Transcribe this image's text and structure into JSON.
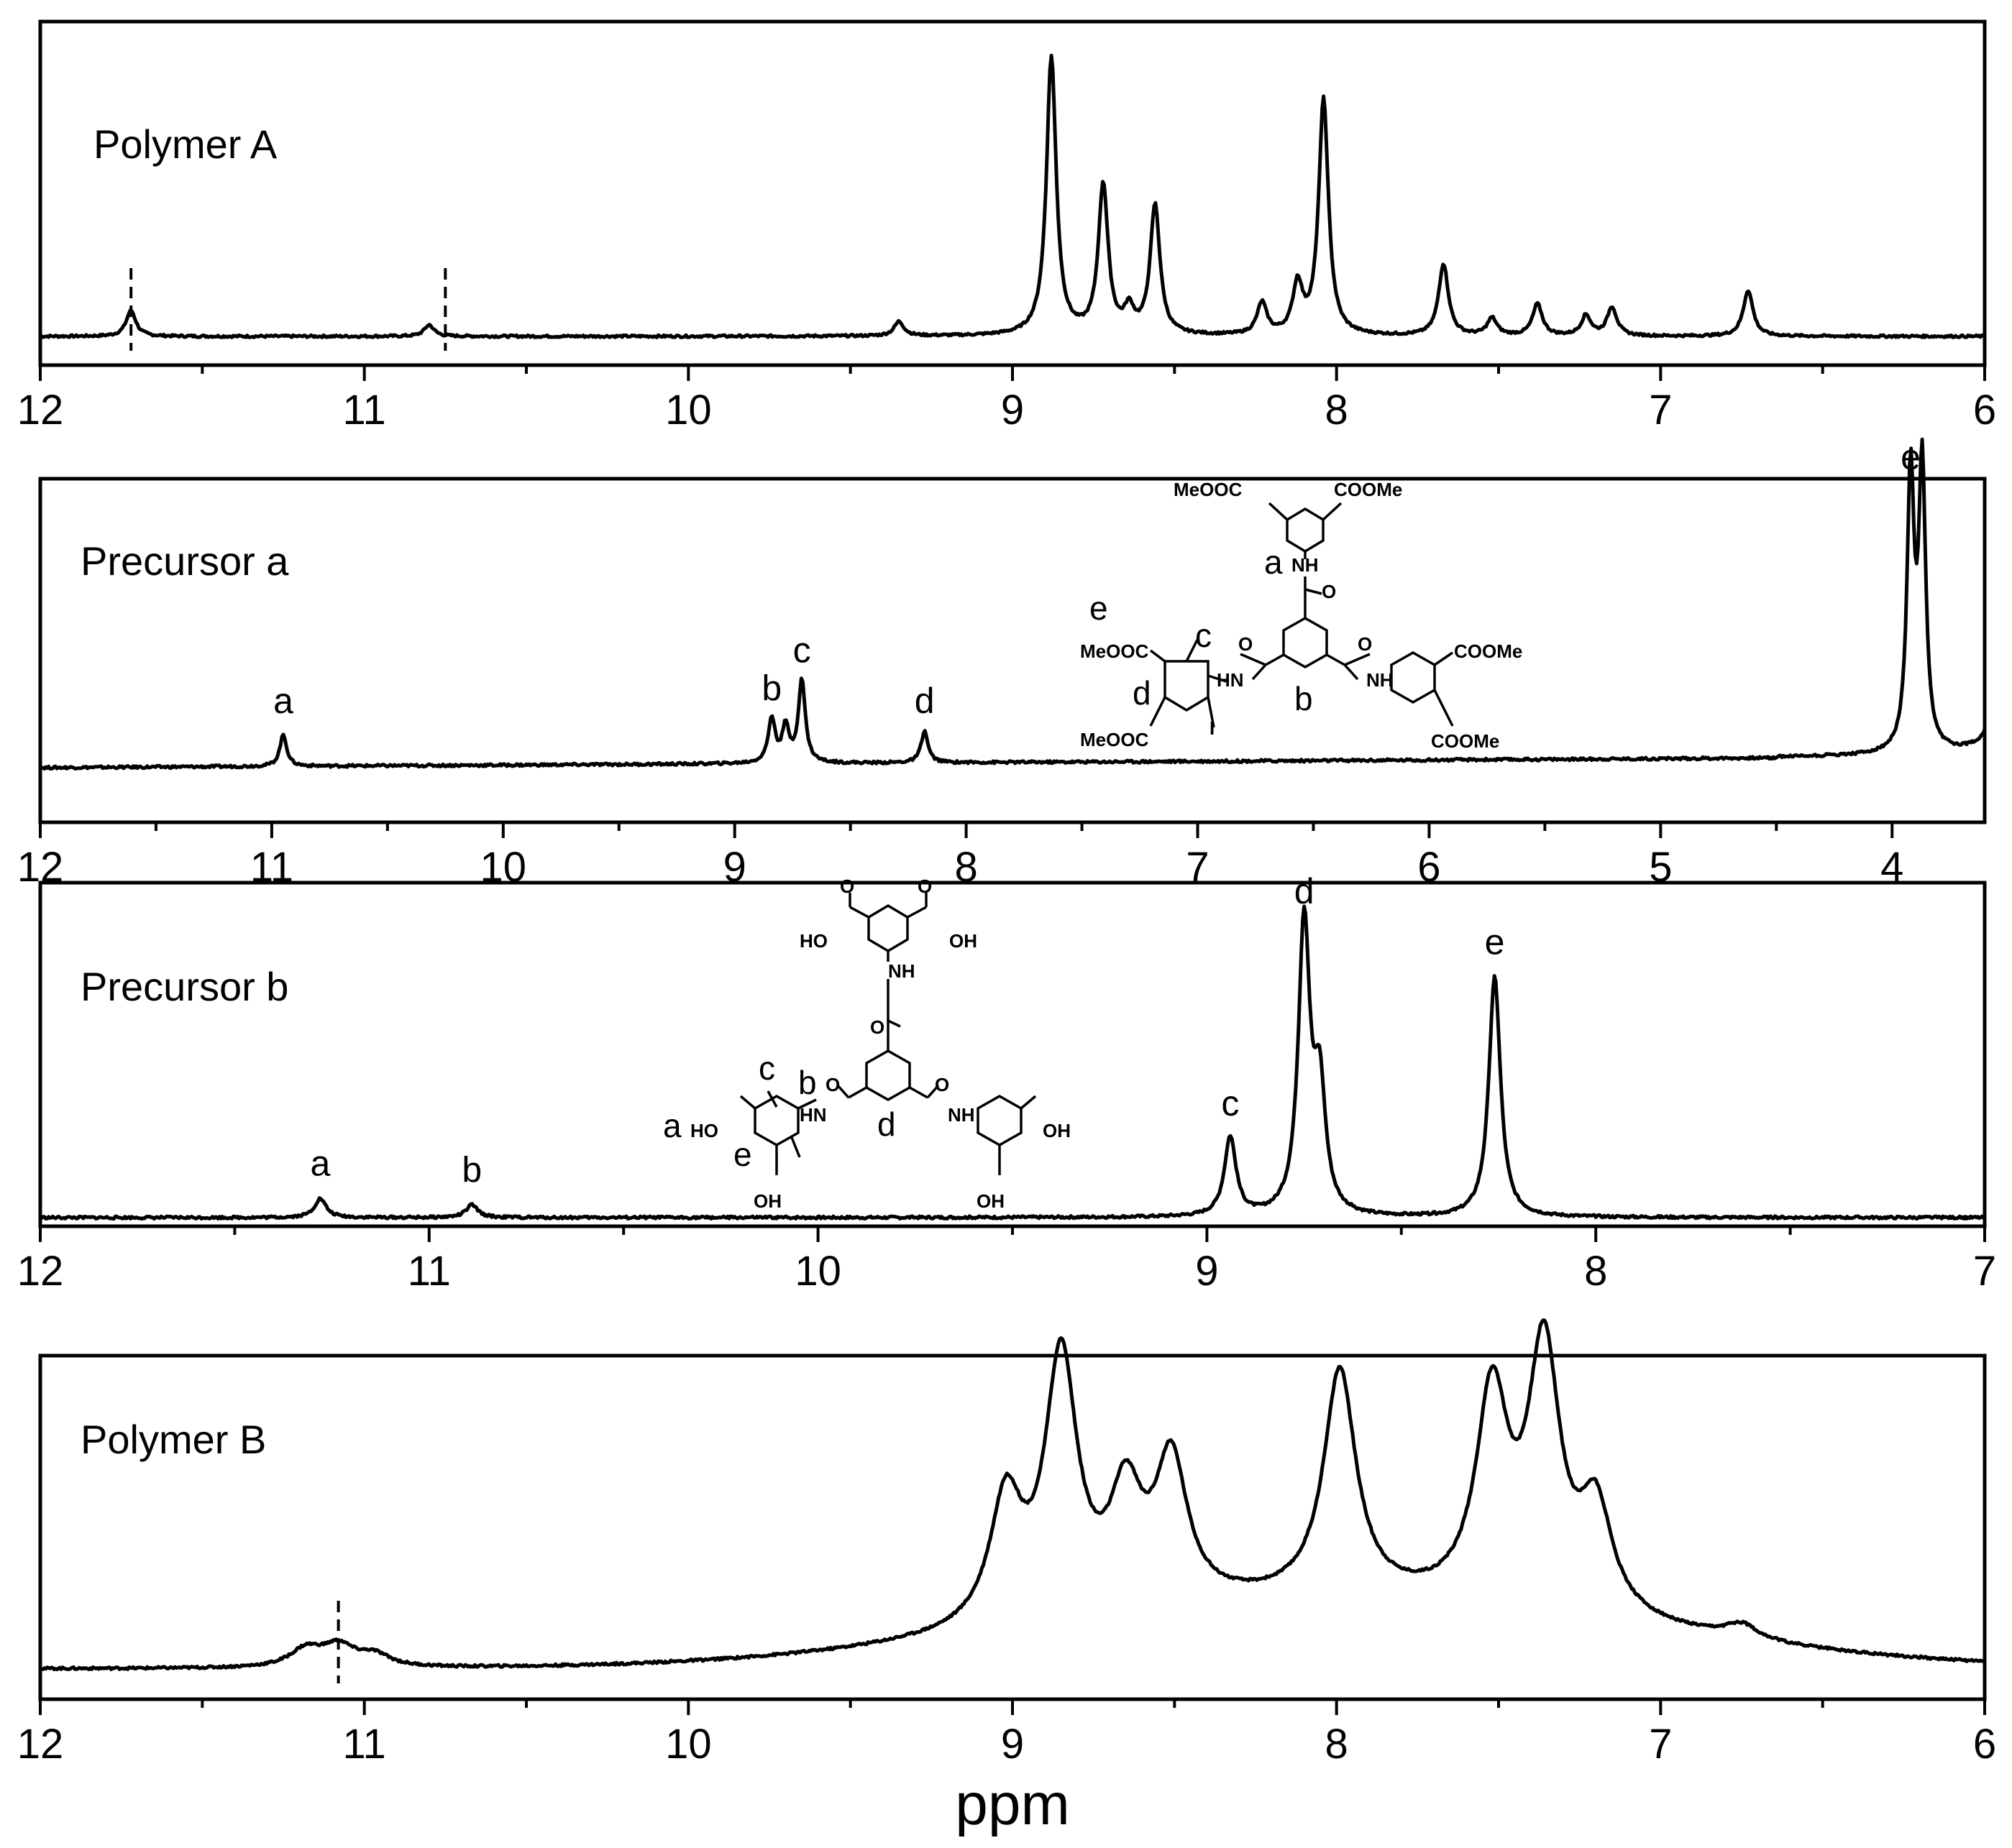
{
  "chart_data": [
    {
      "type": "line",
      "title": "Polymer A",
      "xlim": [
        12,
        6
      ],
      "ticks": [
        "12",
        "11",
        "10",
        "9",
        "8",
        "7",
        "6"
      ],
      "dashed_markers": [
        11.72,
        10.75
      ],
      "peak_labels": [],
      "peaks": [
        [
          11.72,
          0.09
        ],
        [
          10.8,
          0.04
        ],
        [
          9.35,
          0.05
        ],
        [
          8.88,
          0.97
        ],
        [
          8.72,
          0.52
        ],
        [
          8.64,
          0.08
        ],
        [
          8.56,
          0.45
        ],
        [
          8.23,
          0.11
        ],
        [
          8.12,
          0.17
        ],
        [
          8.04,
          0.82
        ],
        [
          7.67,
          0.25
        ],
        [
          7.52,
          0.06
        ],
        [
          7.38,
          0.11
        ],
        [
          7.23,
          0.07
        ],
        [
          7.15,
          0.1
        ],
        [
          6.73,
          0.16
        ]
      ]
    },
    {
      "type": "line",
      "title": "Precursor a",
      "xlim": [
        12,
        3.6
      ],
      "ticks": [
        "12",
        "11",
        "10",
        "9",
        "8",
        "7",
        "6",
        "5",
        "4"
      ],
      "dashed_markers": [],
      "peak_labels": [
        {
          "text": "a",
          "ppm": 10.95
        },
        {
          "text": "b",
          "ppm": 8.84
        },
        {
          "text": "c",
          "ppm": 8.71
        },
        {
          "text": "d",
          "ppm": 8.18
        },
        {
          "text": "e",
          "ppm": 3.92
        }
      ],
      "peaks": [
        [
          10.95,
          0.1
        ],
        [
          8.84,
          0.14
        ],
        [
          8.78,
          0.11
        ],
        [
          8.71,
          0.26
        ],
        [
          8.18,
          0.1
        ],
        [
          3.92,
          0.87
        ],
        [
          3.87,
          0.89
        ]
      ],
      "structure_labels": {
        "ester": "MeOOC",
        "ester_r": "COOMe",
        "nh": "NH",
        "hn": "HN",
        "o": "O",
        "i": "I",
        "a": "a",
        "b": "b",
        "c": "c",
        "d": "d",
        "e": "e"
      }
    },
    {
      "type": "line",
      "title": "Precursor b",
      "xlim": [
        12,
        7
      ],
      "ticks": [
        "12",
        "11",
        "10",
        "9",
        "8",
        "7"
      ],
      "dashed_markers": [],
      "peak_labels": [
        {
          "text": "a",
          "ppm": 11.28
        },
        {
          "text": "b",
          "ppm": 10.89
        },
        {
          "text": "c",
          "ppm": 8.94
        },
        {
          "text": "d",
          "ppm": 8.75
        },
        {
          "text": "e",
          "ppm": 8.26
        }
      ],
      "peaks": [
        [
          11.28,
          0.06
        ],
        [
          10.89,
          0.04
        ],
        [
          8.94,
          0.25
        ],
        [
          8.75,
          0.92
        ],
        [
          8.71,
          0.38
        ],
        [
          8.26,
          0.76
        ]
      ],
      "structure_labels": {
        "ho": "HO",
        "oh": "OH",
        "nh": "NH",
        "hn": "HN",
        "o": "O",
        "a": "a",
        "b": "b",
        "c": "c",
        "d": "d",
        "e": "e"
      }
    },
    {
      "type": "line",
      "title": "Polymer B",
      "xlim": [
        12,
        6
      ],
      "xlabel": "ppm",
      "ticks": [
        "12",
        "11",
        "10",
        "9",
        "8",
        "7",
        "6"
      ],
      "dashed_markers": [
        11.08
      ],
      "peak_labels": [],
      "peaks": [
        [
          11.18,
          0.06
        ],
        [
          11.08,
          0.07
        ],
        [
          10.97,
          0.04
        ],
        [
          9.02,
          0.42
        ],
        [
          8.85,
          0.88
        ],
        [
          8.65,
          0.37
        ],
        [
          8.51,
          0.48
        ],
        [
          7.99,
          0.77
        ],
        [
          7.52,
          0.7
        ],
        [
          7.36,
          0.87
        ],
        [
          7.2,
          0.35
        ],
        [
          6.75,
          0.05
        ]
      ]
    }
  ]
}
